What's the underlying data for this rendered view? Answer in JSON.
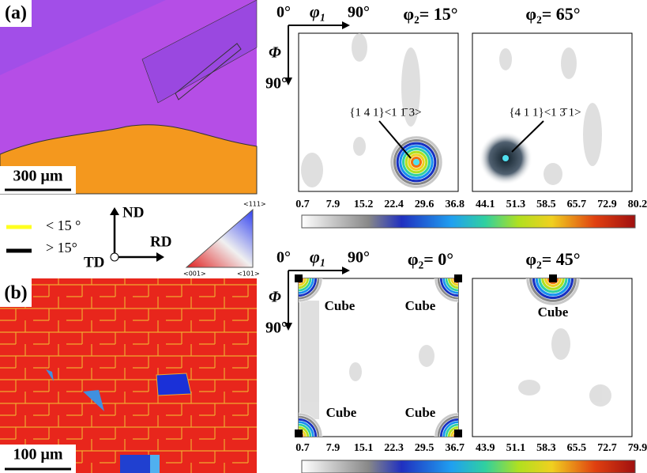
{
  "panel_a": {
    "label": "(a)",
    "scale_bar": "300 μm"
  },
  "panel_b": {
    "label": "(b)",
    "scale_bar": "100 μm"
  },
  "legend": {
    "low_angle": "< 15 °",
    "high_angle": "> 15°",
    "nd": "ND",
    "rd": "RD",
    "td": "TD",
    "ipf_top": "<111>",
    "ipf_left": "<001>",
    "ipf_right": "<101>"
  },
  "odf_top": {
    "axis_origin": "0°",
    "axis_phi1": "φ₁",
    "axis_phi1_end": "90°",
    "axis_Phi": "Φ",
    "axis_Phi_end": "90°",
    "sections": [
      {
        "title": "φ₂= 15°",
        "annotation": "{1 4 1}<1 1̄ 3>"
      },
      {
        "title": "φ₂= 65°",
        "annotation": "{4 1 1}<1 3̄ 1>"
      }
    ],
    "colorbar": [
      0.7,
      7.9,
      15.2,
      22.4,
      29.6,
      36.8,
      44.1,
      51.3,
      58.5,
      65.7,
      72.9,
      80.2
    ]
  },
  "odf_bottom": {
    "axis_origin": "0°",
    "axis_phi1": "φ₁",
    "axis_phi1_end": "90°",
    "axis_Phi": "Φ",
    "axis_Phi_end": "90°",
    "sections": [
      {
        "title": "φ₂= 0°",
        "labels": [
          "Cube",
          "Cube",
          "Cube",
          "Cube"
        ]
      },
      {
        "title": "φ₂= 45°",
        "labels": [
          "Cube"
        ]
      }
    ],
    "colorbar": [
      0.7,
      7.9,
      15.1,
      22.3,
      29.5,
      36.7,
      43.9,
      51.1,
      58.3,
      65.5,
      72.7,
      79.9
    ]
  }
}
